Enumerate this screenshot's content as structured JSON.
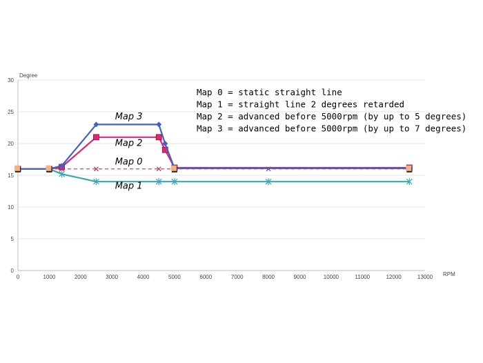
{
  "chart_data": {
    "type": "line",
    "ylabel": "Degree",
    "xlabel": "RPM",
    "xlim": [
      0,
      13000
    ],
    "ylim": [
      0,
      30
    ],
    "x_ticks": [
      "0",
      "1000",
      "2000",
      "3000",
      "4000",
      "5000",
      "6000",
      "7000",
      "8000",
      "9000",
      "10000",
      "11000",
      "12000",
      "13000"
    ],
    "y_ticks": [
      "0",
      "5",
      "10",
      "15",
      "20",
      "25",
      "30"
    ],
    "grid": true,
    "legend_text": [
      "Map 0 = static straight line",
      "Map 1 = straight line 2 degrees retarded",
      "Map 2 = advanced before 5000rpm (by up to 5 degrees)",
      "Map 3 = advanced before 5000rpm (by up to 7 degrees)"
    ],
    "series": [
      {
        "name": "Map 0",
        "color": "#b8375a",
        "dash": true,
        "marker": "x",
        "x": [
          0,
          1000,
          1400,
          2500,
          4500,
          5000,
          8000,
          12500
        ],
        "y": [
          16,
          16,
          16,
          16,
          16,
          16,
          16,
          16
        ]
      },
      {
        "name": "Map 1",
        "color": "#3aa6b5",
        "marker": "star",
        "x": [
          0,
          1000,
          1400,
          2500,
          4500,
          5000,
          8000,
          12500
        ],
        "y": [
          16,
          16,
          15.2,
          14,
          14,
          14,
          14,
          14
        ]
      },
      {
        "name": "Map 2",
        "color": "#e6246b",
        "marker": "square",
        "x": [
          0,
          1000,
          1400,
          2500,
          4500,
          4700,
          5000,
          12500
        ],
        "y": [
          16,
          16,
          16.3,
          21,
          21,
          19,
          16.2,
          16.2
        ]
      },
      {
        "name": "Map 3",
        "color": "#3f61c8",
        "marker": "diamond",
        "x": [
          0,
          1000,
          1400,
          2500,
          4500,
          4700,
          5000,
          12500
        ],
        "y": [
          16,
          16,
          16.5,
          23,
          23,
          20,
          16.1,
          16.1
        ]
      }
    ],
    "annotations": [
      {
        "text": "Map 3",
        "x": 3100,
        "y": 23.8
      },
      {
        "text": "Map 2",
        "x": 3100,
        "y": 19.6
      },
      {
        "text": "Map 0",
        "x": 3100,
        "y": 16.7
      },
      {
        "text": "Map 1",
        "x": 3100,
        "y": 12.9
      }
    ]
  }
}
